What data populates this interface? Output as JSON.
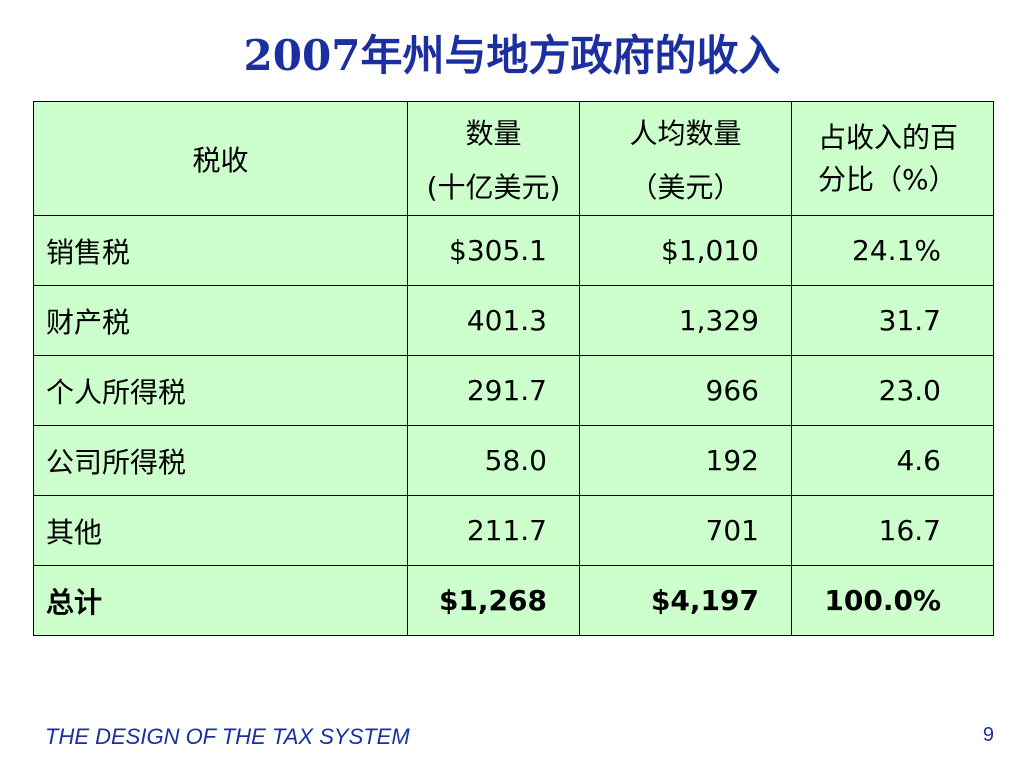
{
  "slide": {
    "title": "2007年州与地方政府的收入",
    "footer": "THE DESIGN OF THE TAX SYSTEM",
    "page_number": "9"
  },
  "table": {
    "headers": {
      "tax": "税收",
      "amount_line1": "数量",
      "amount_line2": "(十亿美元)",
      "per_capita_line1": "人均数量",
      "per_capita_line2": "（美元）",
      "percent_line1": "占收入的百",
      "percent_line2": "分比（%）"
    },
    "rows": [
      {
        "tax": "销售税",
        "amount": "$305.1",
        "per_capita": "$1,010",
        "percent": "24.1%"
      },
      {
        "tax": "财产税",
        "amount": "401.3",
        "per_capita": "1,329",
        "percent": "31.7"
      },
      {
        "tax": "个人所得税",
        "amount": "291.7",
        "per_capita": "966",
        "percent": "23.0"
      },
      {
        "tax": "公司所得税",
        "amount": "58.0",
        "per_capita": "192",
        "percent": "4.6"
      },
      {
        "tax": "其他",
        "amount": "211.7",
        "per_capita": "701",
        "percent": "16.7"
      }
    ],
    "total": {
      "tax": "总计",
      "amount": "$1,268",
      "per_capita": "$4,197",
      "percent": "100.0%"
    }
  },
  "colors": {
    "title": "#1c2fa0",
    "table_background": "#ccffcc",
    "footer": "#1c2fa0"
  }
}
